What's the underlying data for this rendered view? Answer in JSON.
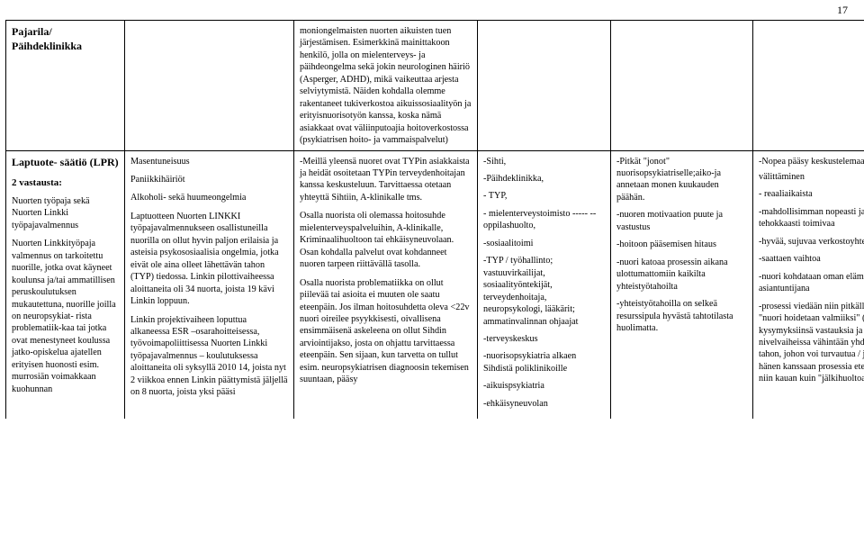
{
  "page_number": "17",
  "table": {
    "row1": {
      "c1_title": "Pajarila/ Päihdeklinikka",
      "c3_text": "moniongelmaisten nuorten aikuisten tuen järjestämisen. Esimerkkinä mainittakoon henkilö, jolla on mielenterveys- ja päihdeongelma sekä jokin neurologinen häiriö (Asperger, ADHD), mikä vaikeuttaa arjesta selviytymistä. Näiden kohdalla olemme rakentaneet tukiverkostoa aikuissosiaalityön ja erityisnuorisotyön kanssa, koska nämä asiakkaat ovat väliinputoajia hoitoverkostossa (psykiatrisen hoito- ja vammaispalvelut)"
    },
    "row2": {
      "c1_title": "Laptuote- säätiö (LPR)",
      "c1_sub_bold": "2 vastausta:",
      "c1_block1": "Nuorten työpaja sekä Nuorten Linkki työpajavalmennus",
      "c1_block2": "Nuorten Linkkityöpaja valmennus on tarkoitettu nuorille, jotka ovat käyneet koulunsa ja/tai ammatillisen peruskoulutuksen mukautettuna, nuorille joilla on neuropsykiat- rista problematiik-kaa tai jotka ovat menestyneet koulussa jatko-opiskelua ajatellen erityisen huonosti esim. murrosiän voimakkaan kuohunnan",
      "c2_line1": "Masentuneisuus",
      "c2_line2": "Paniikkihäiriöt",
      "c2_line3": "Alkoholi- sekä huumeongelmia",
      "c2_para1": "Laptuotteen Nuorten LINKKI työpajavalmennukseen osallistuneilla nuorilla on ollut hyvin paljon erilaisia ja asteisia psykososiaalisia ongelmia, jotka eivät ole aina olleet lähettävän tahon (TYP) tiedossa.  Linkin pilottivaiheessa aloittaneita oli 34 nuorta, joista 19 kävi Linkin loppuun.",
      "c2_para2": "Linkin projektivaiheen loputtua alkaneessa ESR –osarahoitteisessa, työvoimapoliittisessa Nuorten Linkki työpajavalmennus – koulutuksessa aloittaneita oli syksyllä 2010  14, joista nyt 2 viikkoa ennen Linkin päättymistä jäljellä on 8 nuorta, joista yksi pääsi",
      "c3_para1": "-Meillä yleensä nuoret ovat TYPin asiakkaista ja heidät osoitetaan TYPin terveydenhoitajan kanssa keskusteluun. Tarvittaessa otetaan yhteyttä Sihtiin, A-klinikalle tms.",
      "c3_para2": "Osalla nuorista oli olemassa hoitosuhde mielenterveyspalveluihin, A-klinikalle, Kriminaalihuoltoon tai ehkäisyneuvolaan. Osan kohdalla palvelut ovat kohdanneet nuoren tarpeen riittävällä tasolla.",
      "c3_para3": "Osalla nuorista problematiikka on ollut piilevää tai asioita ei muuten ole saatu eteenpäin. Jos ilman hoitosuhdetta oleva <22v nuori oireilee psyykkisesti, oivallisena ensimmäisenä askeleena on ollut Sihdin arviointijakso, josta on ohjattu tarvittaessa eteenpäin. Sen sijaan, kun tarvetta on tullut esim. neuropsykiatrisen diagnoosin tekemisen suuntaan, pääsy",
      "c4_items": [
        "-Sihti,",
        "-Päihdeklinikka,",
        "- TYP,",
        "- mielenterveystoimisto  -----  --oppilashuolto,",
        "-sosiaalitoimi",
        "-TYP / työhallinto; vastuuvirkailijat, sosiaalityöntekijät, terveydenhoitaja, neuropsykologi, lääkärit; ammatinvalinnan ohjaajat",
        "-terveyskeskus",
        "-nuorisopsykiatria alkaen Sihdistä poliklinikoille",
        "-aikuispsykiatria",
        "-ehkäisyneuvolan"
      ],
      "c5_items": [
        "-Pitkät \"jonot\" nuorisopsykiatriselle;aiko-ja annetaan monen kuukauden päähän.",
        "-nuoren motivaation puute ja vastustus",
        "-hoitoon pääsemisen hitaus",
        "-nuori katoaa prosessin aikana ulottumattomiin kaikilta yhteistyötahoilta",
        "-yhteistyötahoilla on selkeä resurssipula hyvästä tahtotilasta huolimatta."
      ],
      "c6_items": [
        "-Nopea pääsy keskustelemaan asioista-",
        "välittäminen",
        "- reaaliaikaista",
        "-mahdollisimman nopeasti ja tehokkaasti toimivaa",
        "-hyvää, sujuvaa verkostoyhteistyötä",
        "-saattaen vaihtoa",
        "-nuori kohdataan oman elämänsä asiantuntijana",
        "-prosessi viedään niin pitkälle, että \"nuori hoidetaan valmiiksi\" (nuori saa kysymyksiinsä vastauksia ja hän saa nivelvaiheissa vähintään yhden uuden tahon, johon voi turvautua / joka vie hänen kanssaan prosessia eteenpäin, niin kauan kuin \"jälkihuoltoa\" tarvitaan"
      ]
    }
  }
}
